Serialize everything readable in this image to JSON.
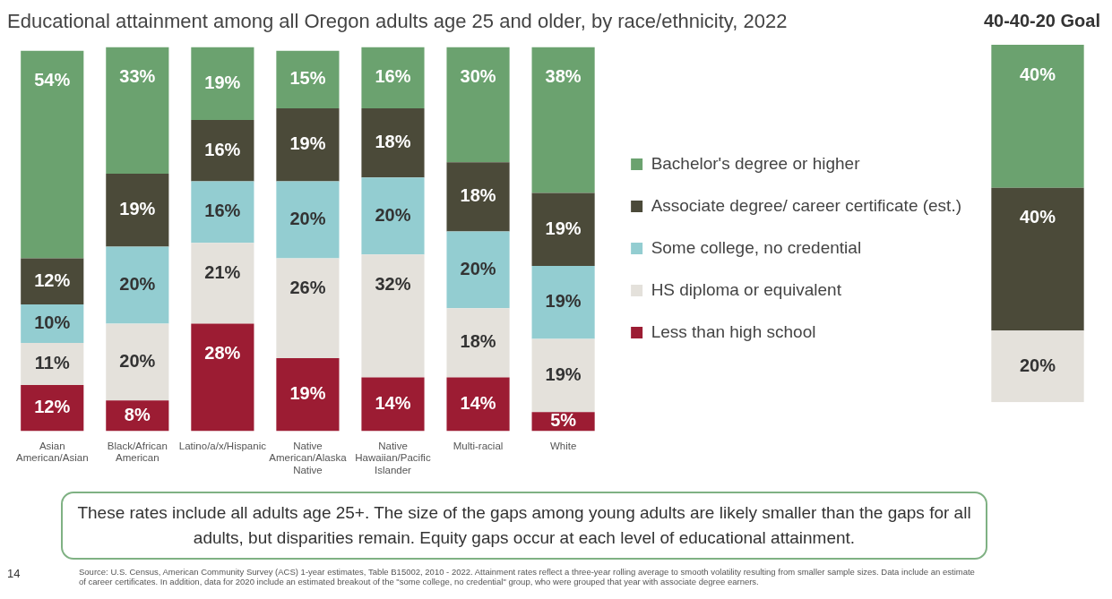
{
  "chart_data": [
    {
      "type": "bar",
      "title": "Educational attainment among all Oregon adults age 25 and older, by race/ethnicity, 2022",
      "categories": [
        "Asian American/Asian",
        "Black/African American",
        "Latino/a/x/Hispanic",
        "Native American/Alaska Native",
        "Native Hawaiian/Pacific Islander",
        "Multi-racial",
        "White"
      ],
      "stacked": true,
      "legend": "right",
      "grid": false,
      "series": [
        {
          "name": "Less than high school",
          "color": "#9c1c33",
          "values": [
            12,
            8,
            28,
            19,
            14,
            14,
            5
          ],
          "value_labels": [
            "12%",
            "8%",
            "28%",
            "19%",
            "14%",
            "14%",
            "5%"
          ]
        },
        {
          "name": "HS diploma or equivalent",
          "color": "#e4e1db",
          "values": [
            11,
            20,
            21,
            26,
            32,
            18,
            19
          ],
          "value_labels": [
            "11%",
            "20%",
            "21%",
            "26%",
            "32%",
            "18%",
            "19%"
          ]
        },
        {
          "name": "Some college, no credential",
          "color": "#93cdd1",
          "values": [
            10,
            20,
            16,
            20,
            20,
            20,
            19
          ],
          "value_labels": [
            "10%",
            "20%",
            "16%",
            "20%",
            "20%",
            "20%",
            "19%"
          ]
        },
        {
          "name": "Associate degree/ career certificate (est.)",
          "color": "#4b4a39",
          "values": [
            12,
            19,
            16,
            19,
            18,
            18,
            19
          ],
          "value_labels": [
            "12%",
            "19%",
            "16%",
            "19%",
            "18%",
            "18%",
            "19%"
          ]
        },
        {
          "name": "Bachelor's degree or higher",
          "color": "#6ba26f",
          "values": [
            54,
            33,
            19,
            15,
            16,
            30,
            38
          ],
          "value_labels": [
            "54%",
            "33%",
            "19%",
            "15%",
            "16%",
            "30%",
            "38%"
          ]
        }
      ],
      "annotations": [
        "These rates include all adults age 25+. The size of the gaps among young adults are likely smaller than the gaps for all adults, but disparities remain. Equity gaps occur at each level of educational attainment.",
        "Source: U.S. Census, American Community Survey (ACS) 1-year estimates, Table B15002, 2010 - 2022. Attainment rates reflect a three-year rolling average to smooth volatility resulting from smaller sample sizes. Data include an estimate of career certificates. In addition, data for 2020 include an estimated breakout of the \"some college, no credential\" group, who were grouped that year with associate degree earners.",
        "14"
      ]
    },
    {
      "type": "bar",
      "title": "40-40-20 Goal",
      "categories": [
        null
      ],
      "stacked": true,
      "legend": false,
      "grid": false,
      "series": [
        {
          "color": "#e4e1db",
          "values": [
            20
          ],
          "value_labels": [
            "20%"
          ]
        },
        {
          "color": "#4b4a39",
          "values": [
            40
          ],
          "value_labels": [
            "40%"
          ]
        },
        {
          "color": "#6ba26f",
          "values": [
            40
          ],
          "value_labels": [
            "40%"
          ]
        }
      ]
    }
  ]
}
